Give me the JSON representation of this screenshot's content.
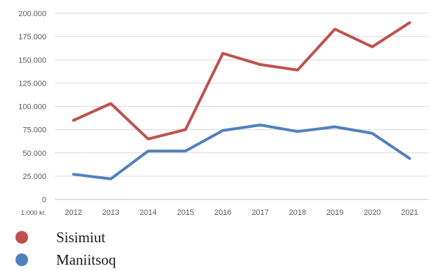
{
  "chart_data": {
    "type": "line",
    "x": [
      "2012",
      "2013",
      "2014",
      "2015",
      "2016",
      "2017",
      "2018",
      "2019",
      "2020",
      "2021"
    ],
    "series": [
      {
        "name": "Sisimiut",
        "color": "#c0504d",
        "values": [
          85000,
          103000,
          65000,
          75000,
          157000,
          145000,
          139000,
          183000,
          164000,
          190000
        ]
      },
      {
        "name": "Maniitsoq",
        "color": "#4f81bd",
        "values": [
          27000,
          22000,
          52000,
          52000,
          74000,
          80000,
          73000,
          78000,
          71000,
          44000
        ]
      }
    ],
    "y_ticks": [
      "0",
      "25.000",
      "50.000",
      "75.000",
      "100.000",
      "125.000",
      "150.000",
      "175.000",
      "200.000"
    ],
    "y_unit": "1.000 kr.",
    "ylim": [
      0,
      200000
    ],
    "grid": true,
    "legend_position": "bottom-left"
  }
}
